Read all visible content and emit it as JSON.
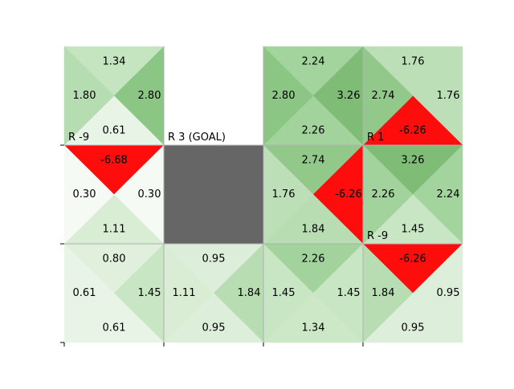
{
  "grid": {
    "rows": 3,
    "cols": 4,
    "cells": [
      {
        "row": 0,
        "col": 0,
        "kind": "state",
        "q": {
          "up": "1.34",
          "right": "2.80",
          "down": "0.61",
          "left": "1.80"
        },
        "reward_label": "R -9",
        "colors": {
          "up": "#c5e4c0",
          "right": "#8cc685",
          "down": "#e8f4e5",
          "left": "#b6dcb1"
        }
      },
      {
        "row": 0,
        "col": 1,
        "kind": "goal",
        "reward_label": "R 3 (GOAL)"
      },
      {
        "row": 0,
        "col": 2,
        "kind": "state",
        "q": {
          "up": "2.24",
          "right": "3.26",
          "down": "2.26",
          "left": "2.80"
        },
        "reward_label": "",
        "colors": {
          "up": "#a4d49e",
          "right": "#7fbd77",
          "down": "#a2d39c",
          "left": "#8cc685"
        }
      },
      {
        "row": 0,
        "col": 3,
        "kind": "state",
        "q": {
          "up": "1.76",
          "right": "1.76",
          "down": "-6.26",
          "left": "2.74"
        },
        "reward_label": "R 1",
        "colors": {
          "up": "#bcdfb7",
          "right": "#bcdfb7",
          "down": "#ff0d0d",
          "left": "#92c98b"
        }
      },
      {
        "row": 1,
        "col": 0,
        "kind": "state",
        "q": {
          "up": "-6.68",
          "right": "0.30",
          "down": "1.11",
          "left": "0.30"
        },
        "reward_label": "",
        "colors": {
          "up": "#ff0d0d",
          "right": "#f5faf4",
          "down": "#d8edd4",
          "left": "#f5faf4"
        }
      },
      {
        "row": 1,
        "col": 1,
        "kind": "wall"
      },
      {
        "row": 1,
        "col": 2,
        "kind": "state",
        "q": {
          "up": "2.74",
          "right": "-6.26",
          "down": "1.84",
          "left": "1.76"
        },
        "reward_label": "",
        "colors": {
          "up": "#92c98b",
          "right": "#ff0d0d",
          "down": "#b8ddb3",
          "left": "#bcdfb7"
        }
      },
      {
        "row": 1,
        "col": 3,
        "kind": "state",
        "q": {
          "up": "3.26",
          "right": "2.24",
          "down": "1.45",
          "left": "2.26"
        },
        "reward_label": "R -9",
        "colors": {
          "up": "#7fbd77",
          "right": "#a4d49e",
          "down": "#c9e6c4",
          "left": "#a2d39c"
        }
      },
      {
        "row": 2,
        "col": 0,
        "kind": "state",
        "q": {
          "up": "0.80",
          "right": "1.45",
          "down": "0.61",
          "left": "0.61"
        },
        "reward_label": "",
        "colors": {
          "up": "#e0f0dc",
          "right": "#c9e6c4",
          "down": "#e8f4e5",
          "left": "#e8f4e5"
        }
      },
      {
        "row": 2,
        "col": 1,
        "kind": "state",
        "q": {
          "up": "0.95",
          "right": "1.84",
          "down": "0.95",
          "left": "1.11"
        },
        "reward_label": "",
        "colors": {
          "up": "#ddefda",
          "right": "#b8ddb3",
          "down": "#ddefda",
          "left": "#d8edd4"
        }
      },
      {
        "row": 2,
        "col": 2,
        "kind": "state",
        "q": {
          "up": "2.26",
          "right": "1.45",
          "down": "1.34",
          "left": "1.45"
        },
        "reward_label": "",
        "colors": {
          "up": "#a2d39c",
          "right": "#c9e6c4",
          "down": "#cce8c7",
          "left": "#c9e6c4"
        }
      },
      {
        "row": 2,
        "col": 3,
        "kind": "state",
        "q": {
          "up": "-6.26",
          "right": "0.95",
          "down": "0.95",
          "left": "1.84"
        },
        "reward_label": "",
        "colors": {
          "up": "#ff0d0d",
          "right": "#ddefda",
          "down": "#ddefda",
          "left": "#b8ddb3"
        }
      }
    ]
  },
  "colors": {
    "wall": "#666666",
    "goal": "#ffffff",
    "grid_line": "#b0b0b0",
    "axis": "#000000"
  }
}
